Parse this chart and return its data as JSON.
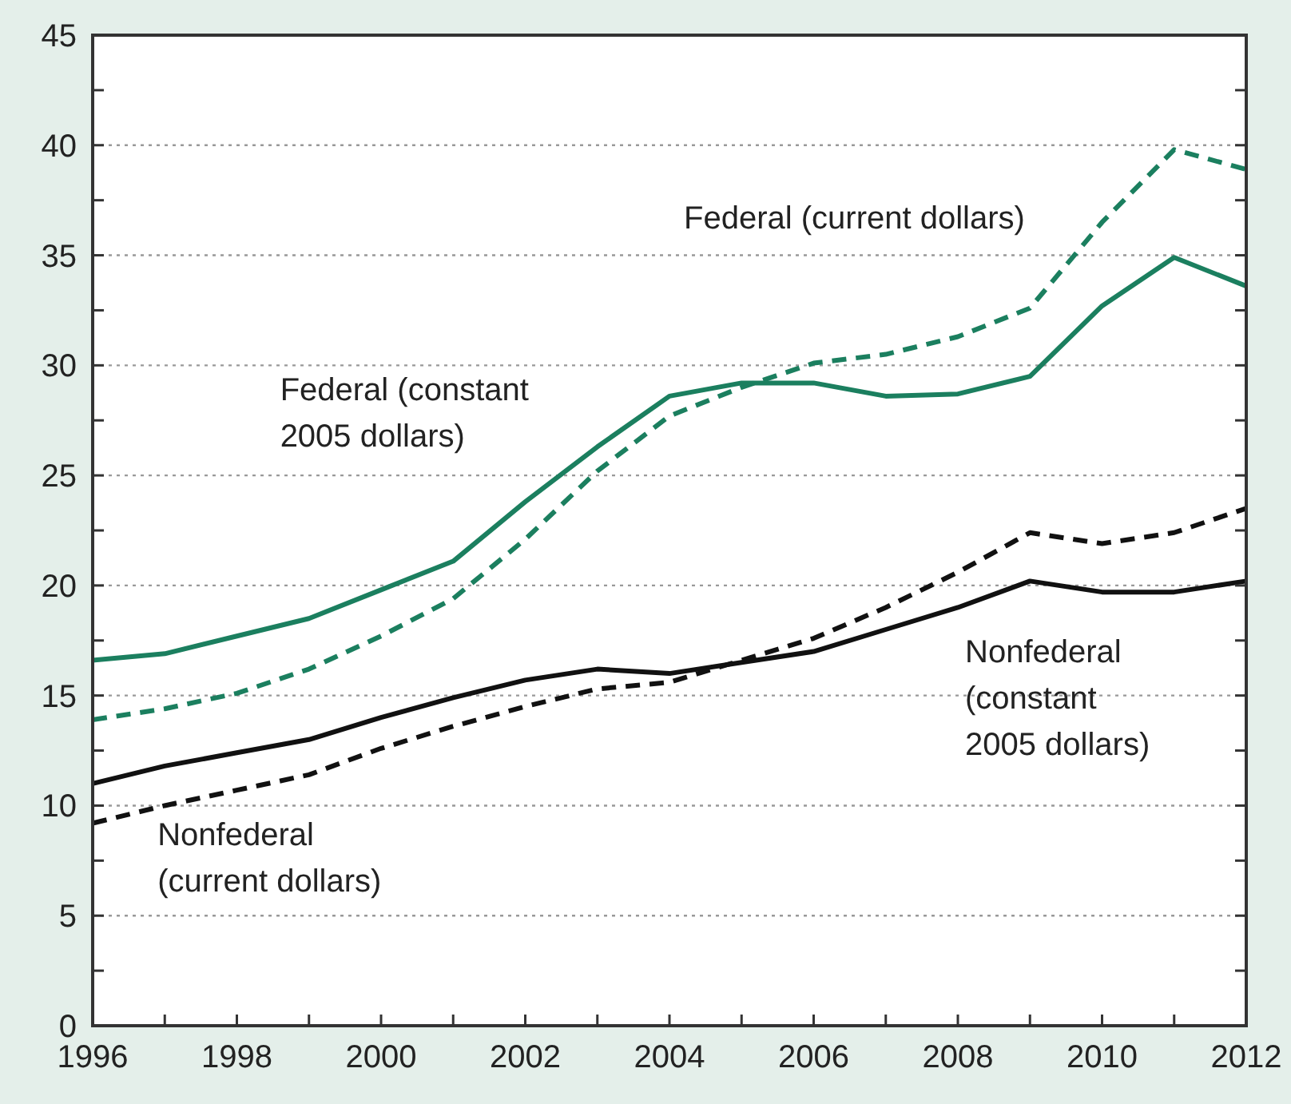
{
  "chart_data": {
    "type": "line",
    "x": [
      1996,
      1997,
      1998,
      1999,
      2000,
      2001,
      2002,
      2003,
      2004,
      2005,
      2006,
      2007,
      2008,
      2009,
      2010,
      2011,
      2012
    ],
    "xlim": [
      1996,
      2012
    ],
    "xticks": [
      1996,
      {
        "value": 1997,
        "label": null
      },
      1998,
      {
        "value": 1999,
        "label": null
      },
      2000,
      {
        "value": 2001,
        "label": null
      },
      2002,
      {
        "value": 2003,
        "label": null
      },
      2004,
      {
        "value": 2005,
        "label": null
      },
      2006,
      {
        "value": 2007,
        "label": null
      },
      2008,
      {
        "value": 2009,
        "label": null
      },
      2010,
      {
        "value": 2011,
        "label": null
      },
      2012
    ],
    "ylim": [
      0,
      45
    ],
    "yticks": [
      0,
      {
        "value": 2.5,
        "label": null
      },
      5,
      {
        "value": 7.5,
        "label": null
      },
      10,
      {
        "value": 12.5,
        "label": null
      },
      15,
      {
        "value": 17.5,
        "label": null
      },
      20,
      {
        "value": 22.5,
        "label": null
      },
      25,
      {
        "value": 27.5,
        "label": null
      },
      30,
      {
        "value": 32.5,
        "label": null
      },
      35,
      {
        "value": 37.5,
        "label": null
      },
      40,
      {
        "value": 42.5,
        "label": null
      },
      45
    ],
    "grid": "y",
    "marker": "none",
    "series": [
      {
        "name": "Federal (current dollars)",
        "color": "#1b7f5f",
        "line_style": "dashed",
        "values": [
          13.9,
          14.4,
          15.1,
          16.2,
          17.7,
          19.4,
          22.1,
          25.2,
          27.7,
          29.0,
          30.1,
          30.5,
          31.3,
          32.6,
          36.5,
          39.8,
          38.9
        ]
      },
      {
        "name": "Federal (constant 2005 dollars)",
        "color": "#1b7f5f",
        "line_style": "solid",
        "values": [
          16.6,
          16.9,
          17.7,
          18.5,
          19.8,
          21.1,
          23.8,
          26.3,
          28.6,
          29.2,
          29.2,
          28.6,
          28.7,
          29.5,
          32.7,
          34.9,
          33.6
        ]
      },
      {
        "name": "Nonfederal (constant 2005 dollars)",
        "color": "#111111",
        "line_style": "solid",
        "values": [
          11.0,
          11.8,
          12.4,
          13.0,
          14.0,
          14.9,
          15.7,
          16.2,
          16.0,
          16.5,
          17.0,
          18.0,
          19.0,
          20.2,
          19.7,
          19.7,
          20.2
        ]
      },
      {
        "name": "Nonfederal (current dollars)",
        "color": "#111111",
        "line_style": "dashed",
        "values": [
          9.2,
          10.0,
          10.7,
          11.4,
          12.6,
          13.6,
          14.5,
          15.3,
          15.6,
          16.6,
          17.6,
          19.0,
          20.6,
          22.4,
          21.9,
          22.4,
          23.5
        ]
      }
    ]
  }
}
